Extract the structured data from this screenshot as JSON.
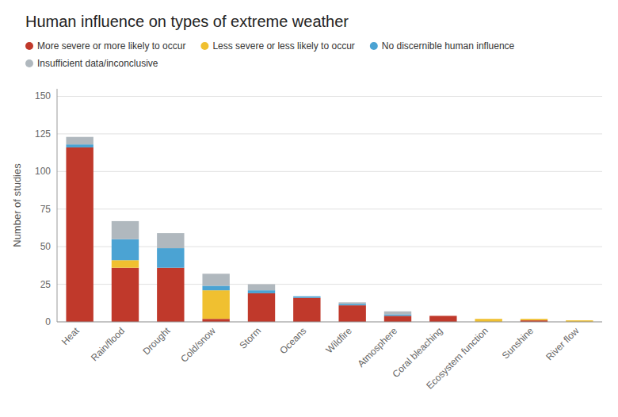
{
  "chart_data": {
    "type": "bar",
    "stacked": true,
    "title": "Human influence on types of extreme weather",
    "ylabel": "Number of studies",
    "categories": [
      "Heat",
      "Rain/flood",
      "Drought",
      "Cold/snow",
      "Storm",
      "Oceans",
      "Wildfire",
      "Atmosphere",
      "Coral bleaching",
      "Ecosystem function",
      "Sunshine",
      "River flow"
    ],
    "series": [
      {
        "name": "More severe or more likely to occur",
        "color": "#c0392b",
        "values": [
          116,
          36,
          36,
          2,
          19,
          16,
          11,
          4,
          4,
          0,
          1,
          0
        ]
      },
      {
        "name": "Less severe or less likely to occur",
        "color": "#f0c030",
        "values": [
          0,
          5,
          0,
          19,
          0,
          0,
          0,
          0,
          0,
          2,
          1,
          1
        ]
      },
      {
        "name": "No discernible human influence",
        "color": "#4ba3d3",
        "values": [
          2,
          14,
          13,
          3,
          2,
          1,
          1,
          1,
          0,
          0,
          0,
          0
        ]
      },
      {
        "name": "Insufficient data/inconclusive",
        "color": "#b0b8be",
        "values": [
          5,
          12,
          10,
          8,
          4,
          0,
          1,
          2,
          0,
          0,
          0,
          0
        ]
      }
    ],
    "ylim": [
      0,
      155
    ],
    "yticks": [
      0,
      25,
      50,
      75,
      100,
      125,
      150
    ],
    "grid": true,
    "legend": "upper left"
  }
}
